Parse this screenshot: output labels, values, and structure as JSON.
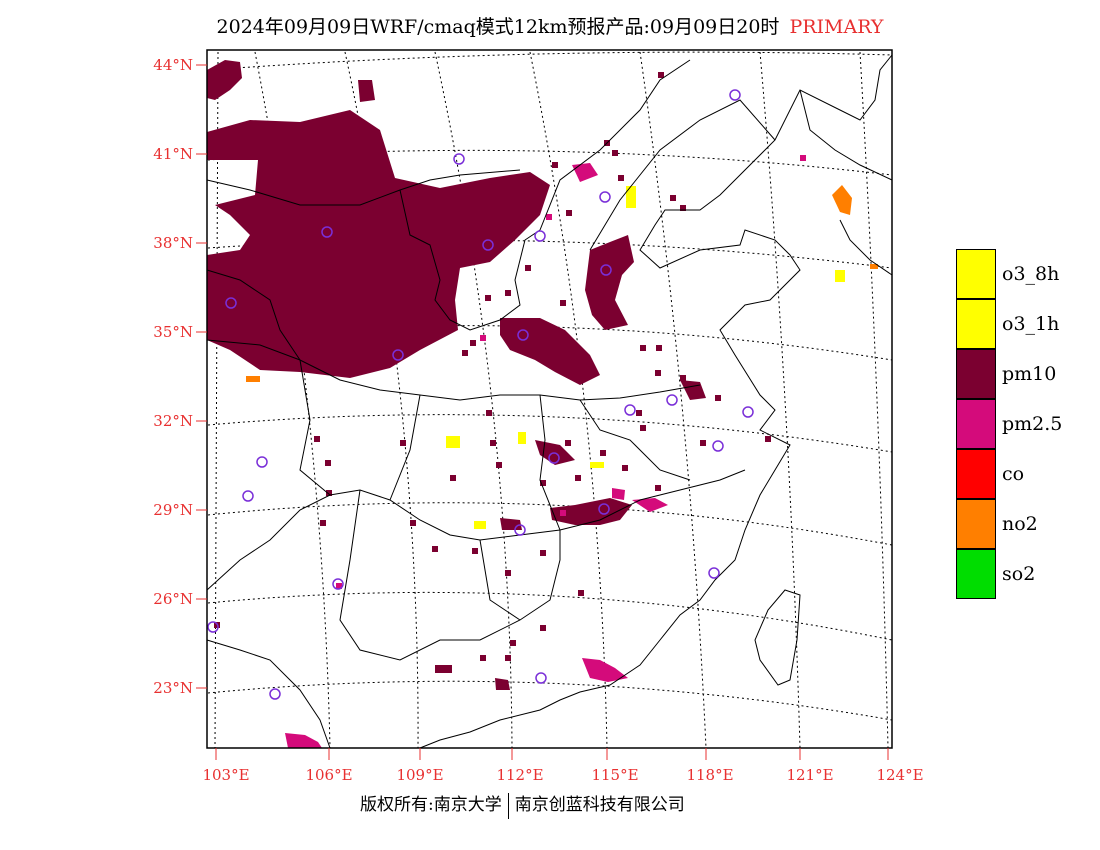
{
  "header": {
    "title": "2024年09月09日WRF/cmaq模式12km预报产品:09月09日20时",
    "product_tag": "PRIMARY"
  },
  "map": {
    "lat_labels": [
      "44°N",
      "41°N",
      "38°N",
      "35°N",
      "32°N",
      "29°N",
      "26°N",
      "23°N"
    ],
    "lon_labels": [
      "103°E",
      "106°E",
      "109°E",
      "112°E",
      "115°E",
      "118°E",
      "121°E",
      "124°E"
    ],
    "label_color": "#e83030",
    "station_marker_color": "#7a2fd8"
  },
  "legend": {
    "items": [
      {
        "label": "o3_8h",
        "color": "#ffff00"
      },
      {
        "label": "o3_1h",
        "color": "#ffff00"
      },
      {
        "label": "pm10",
        "color": "#7b0030"
      },
      {
        "label": "pm2.5",
        "color": "#d40b7b"
      },
      {
        "label": "co",
        "color": "#ff0000"
      },
      {
        "label": "no2",
        "color": "#ff7f00"
      },
      {
        "label": "so2",
        "color": "#00dd00"
      }
    ]
  },
  "footer": {
    "left": "版权所有:南京大学",
    "right": "南京创蓝科技有限公司"
  }
}
